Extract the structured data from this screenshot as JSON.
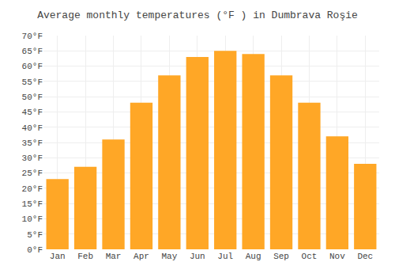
{
  "chart_data": {
    "type": "bar",
    "title": "Average monthly temperatures (°F ) in Dumbrava Roşie",
    "categories": [
      "Jan",
      "Feb",
      "Mar",
      "Apr",
      "May",
      "Jun",
      "Jul",
      "Aug",
      "Sep",
      "Oct",
      "Nov",
      "Dec"
    ],
    "values": [
      23,
      27,
      36,
      48,
      57,
      63,
      65,
      64,
      57,
      48,
      37,
      28
    ],
    "color": "#FFA726",
    "ylim": [
      0,
      70
    ],
    "yticks": [
      {
        "value": 0,
        "label": "0°F"
      },
      {
        "value": 5,
        "label": "5°F"
      },
      {
        "value": 10,
        "label": "10°F"
      },
      {
        "value": 15,
        "label": "15°F"
      },
      {
        "value": 20,
        "label": "20°F"
      },
      {
        "value": 25,
        "label": "25°F"
      },
      {
        "value": 30,
        "label": "30°F"
      },
      {
        "value": 35,
        "label": "35°F"
      },
      {
        "value": 40,
        "label": "40°F"
      },
      {
        "value": 45,
        "label": "45°F"
      },
      {
        "value": 50,
        "label": "50°F"
      },
      {
        "value": 55,
        "label": "55°F"
      },
      {
        "value": 60,
        "label": "60°F"
      },
      {
        "value": 65,
        "label": "65°F"
      },
      {
        "value": 70,
        "label": "70°F"
      }
    ],
    "grid": true
  }
}
